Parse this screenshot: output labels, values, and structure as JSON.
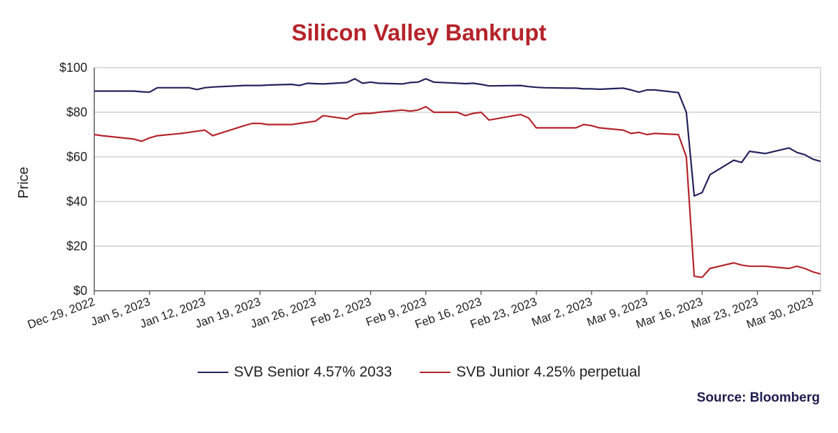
{
  "chart_data": {
    "type": "line",
    "title": "Silicon Valley Bankrupt",
    "ylabel": "Price",
    "ylim": [
      0,
      100
    ],
    "yticks": [
      0,
      20,
      40,
      60,
      80,
      100
    ],
    "ytick_labels": [
      "$0",
      "$20",
      "$40",
      "$60",
      "$80",
      "$100"
    ],
    "grid": true,
    "legend_position": "bottom",
    "xlim": [
      "2022-12-29",
      "2023-03-31"
    ],
    "xticks": [
      "2022-12-29",
      "2023-01-05",
      "2023-01-12",
      "2023-01-19",
      "2023-01-26",
      "2023-02-02",
      "2023-02-09",
      "2023-02-16",
      "2023-02-23",
      "2023-03-02",
      "2023-03-09",
      "2023-03-16",
      "2023-03-23",
      "2023-03-30"
    ],
    "xtick_labels": [
      "Dec 29, 2022",
      "Jan 5, 2023",
      "Jan 12, 2023",
      "Jan 19, 2023",
      "Jan 26, 2023",
      "Feb 2, 2023",
      "Feb 9, 2023",
      "Feb 16, 2023",
      "Feb 23, 2023",
      "Mar 2, 2023",
      "Mar 9, 2023",
      "Mar 16, 2023",
      "Mar 23, 2023",
      "Mar 30, 2023"
    ],
    "series": [
      {
        "name": "SVB Senior 4.57% 2033",
        "color": "#23215a",
        "points": [
          [
            "2022-12-29",
            89.5
          ],
          [
            "2022-12-30",
            89.5
          ],
          [
            "2023-01-03",
            89.5
          ],
          [
            "2023-01-04",
            89.2
          ],
          [
            "2023-01-05",
            89.0
          ],
          [
            "2023-01-06",
            91.0
          ],
          [
            "2023-01-09",
            91.0
          ],
          [
            "2023-01-10",
            91.0
          ],
          [
            "2023-01-11",
            90.2
          ],
          [
            "2023-01-12",
            91.0
          ],
          [
            "2023-01-13",
            91.3
          ],
          [
            "2023-01-17",
            92.0
          ],
          [
            "2023-01-18",
            92.0
          ],
          [
            "2023-01-19",
            92.0
          ],
          [
            "2023-01-20",
            92.2
          ],
          [
            "2023-01-23",
            92.5
          ],
          [
            "2023-01-24",
            92.0
          ],
          [
            "2023-01-25",
            93.0
          ],
          [
            "2023-01-26",
            92.8
          ],
          [
            "2023-01-27",
            92.7
          ],
          [
            "2023-01-30",
            93.3
          ],
          [
            "2023-01-31",
            95.0
          ],
          [
            "2023-02-01",
            93.0
          ],
          [
            "2023-02-02",
            93.5
          ],
          [
            "2023-02-03",
            93.0
          ],
          [
            "2023-02-06",
            92.7
          ],
          [
            "2023-02-07",
            93.3
          ],
          [
            "2023-02-08",
            93.5
          ],
          [
            "2023-02-09",
            95.0
          ],
          [
            "2023-02-10",
            93.5
          ],
          [
            "2023-02-13",
            93.0
          ],
          [
            "2023-02-14",
            92.8
          ],
          [
            "2023-02-15",
            93.0
          ],
          [
            "2023-02-16",
            92.5
          ],
          [
            "2023-02-17",
            91.8
          ],
          [
            "2023-02-21",
            92.0
          ],
          [
            "2023-02-22",
            91.5
          ],
          [
            "2023-02-23",
            91.2
          ],
          [
            "2023-02-24",
            91.0
          ],
          [
            "2023-02-27",
            90.8
          ],
          [
            "2023-02-28",
            90.8
          ],
          [
            "2023-03-01",
            90.5
          ],
          [
            "2023-03-02",
            90.5
          ],
          [
            "2023-03-03",
            90.3
          ],
          [
            "2023-03-06",
            90.8
          ],
          [
            "2023-03-07",
            90.0
          ],
          [
            "2023-03-08",
            89.0
          ],
          [
            "2023-03-09",
            90.0
          ],
          [
            "2023-03-10",
            90.0
          ],
          [
            "2023-03-13",
            88.8
          ],
          [
            "2023-03-14",
            80.0
          ],
          [
            "2023-03-15",
            42.5
          ],
          [
            "2023-03-16",
            44.0
          ],
          [
            "2023-03-17",
            52.0
          ],
          [
            "2023-03-20",
            58.5
          ],
          [
            "2023-03-21",
            57.5
          ],
          [
            "2023-03-22",
            62.5
          ],
          [
            "2023-03-23",
            62.0
          ],
          [
            "2023-03-24",
            61.5
          ],
          [
            "2023-03-27",
            64.0
          ],
          [
            "2023-03-28",
            62.0
          ],
          [
            "2023-03-29",
            61.0
          ],
          [
            "2023-03-30",
            59.0
          ],
          [
            "2023-03-31",
            58.0
          ]
        ]
      },
      {
        "name": "SVB Junior 4.25% perpetual",
        "color": "#b5232a",
        "points": [
          [
            "2022-12-29",
            70.0
          ],
          [
            "2022-12-30",
            69.5
          ],
          [
            "2023-01-03",
            68.0
          ],
          [
            "2023-01-04",
            67.0
          ],
          [
            "2023-01-05",
            68.5
          ],
          [
            "2023-01-06",
            69.5
          ],
          [
            "2023-01-09",
            70.5
          ],
          [
            "2023-01-10",
            71.0
          ],
          [
            "2023-01-11",
            71.5
          ],
          [
            "2023-01-12",
            72.0
          ],
          [
            "2023-01-13",
            69.5
          ],
          [
            "2023-01-17",
            74.0
          ],
          [
            "2023-01-18",
            75.0
          ],
          [
            "2023-01-19",
            75.0
          ],
          [
            "2023-01-20",
            74.5
          ],
          [
            "2023-01-23",
            74.5
          ],
          [
            "2023-01-24",
            75.0
          ],
          [
            "2023-01-25",
            75.5
          ],
          [
            "2023-01-26",
            76.0
          ],
          [
            "2023-01-27",
            78.5
          ],
          [
            "2023-01-30",
            77.0
          ],
          [
            "2023-01-31",
            79.0
          ],
          [
            "2023-02-01",
            79.5
          ],
          [
            "2023-02-02",
            79.5
          ],
          [
            "2023-02-03",
            80.0
          ],
          [
            "2023-02-06",
            81.0
          ],
          [
            "2023-02-07",
            80.5
          ],
          [
            "2023-02-08",
            81.0
          ],
          [
            "2023-02-09",
            82.5
          ],
          [
            "2023-02-10",
            80.0
          ],
          [
            "2023-02-13",
            80.0
          ],
          [
            "2023-02-14",
            78.5
          ],
          [
            "2023-02-15",
            79.5
          ],
          [
            "2023-02-16",
            80.0
          ],
          [
            "2023-02-17",
            76.5
          ],
          [
            "2023-02-21",
            79.0
          ],
          [
            "2023-02-22",
            77.5
          ],
          [
            "2023-02-23",
            73.0
          ],
          [
            "2023-02-24",
            73.0
          ],
          [
            "2023-02-27",
            73.0
          ],
          [
            "2023-02-28",
            73.0
          ],
          [
            "2023-03-01",
            74.5
          ],
          [
            "2023-03-02",
            74.0
          ],
          [
            "2023-03-03",
            73.0
          ],
          [
            "2023-03-06",
            72.0
          ],
          [
            "2023-03-07",
            70.5
          ],
          [
            "2023-03-08",
            71.0
          ],
          [
            "2023-03-09",
            70.0
          ],
          [
            "2023-03-10",
            70.5
          ],
          [
            "2023-03-13",
            70.0
          ],
          [
            "2023-03-14",
            60.0
          ],
          [
            "2023-03-15",
            6.5
          ],
          [
            "2023-03-16",
            6.0
          ],
          [
            "2023-03-17",
            10.0
          ],
          [
            "2023-03-20",
            12.5
          ],
          [
            "2023-03-21",
            11.5
          ],
          [
            "2023-03-22",
            11.0
          ],
          [
            "2023-03-23",
            11.0
          ],
          [
            "2023-03-24",
            11.0
          ],
          [
            "2023-03-27",
            10.0
          ],
          [
            "2023-03-28",
            11.0
          ],
          [
            "2023-03-29",
            10.0
          ],
          [
            "2023-03-30",
            8.5
          ],
          [
            "2023-03-31",
            7.5
          ]
        ]
      }
    ]
  },
  "source": "Source: Bloomberg"
}
